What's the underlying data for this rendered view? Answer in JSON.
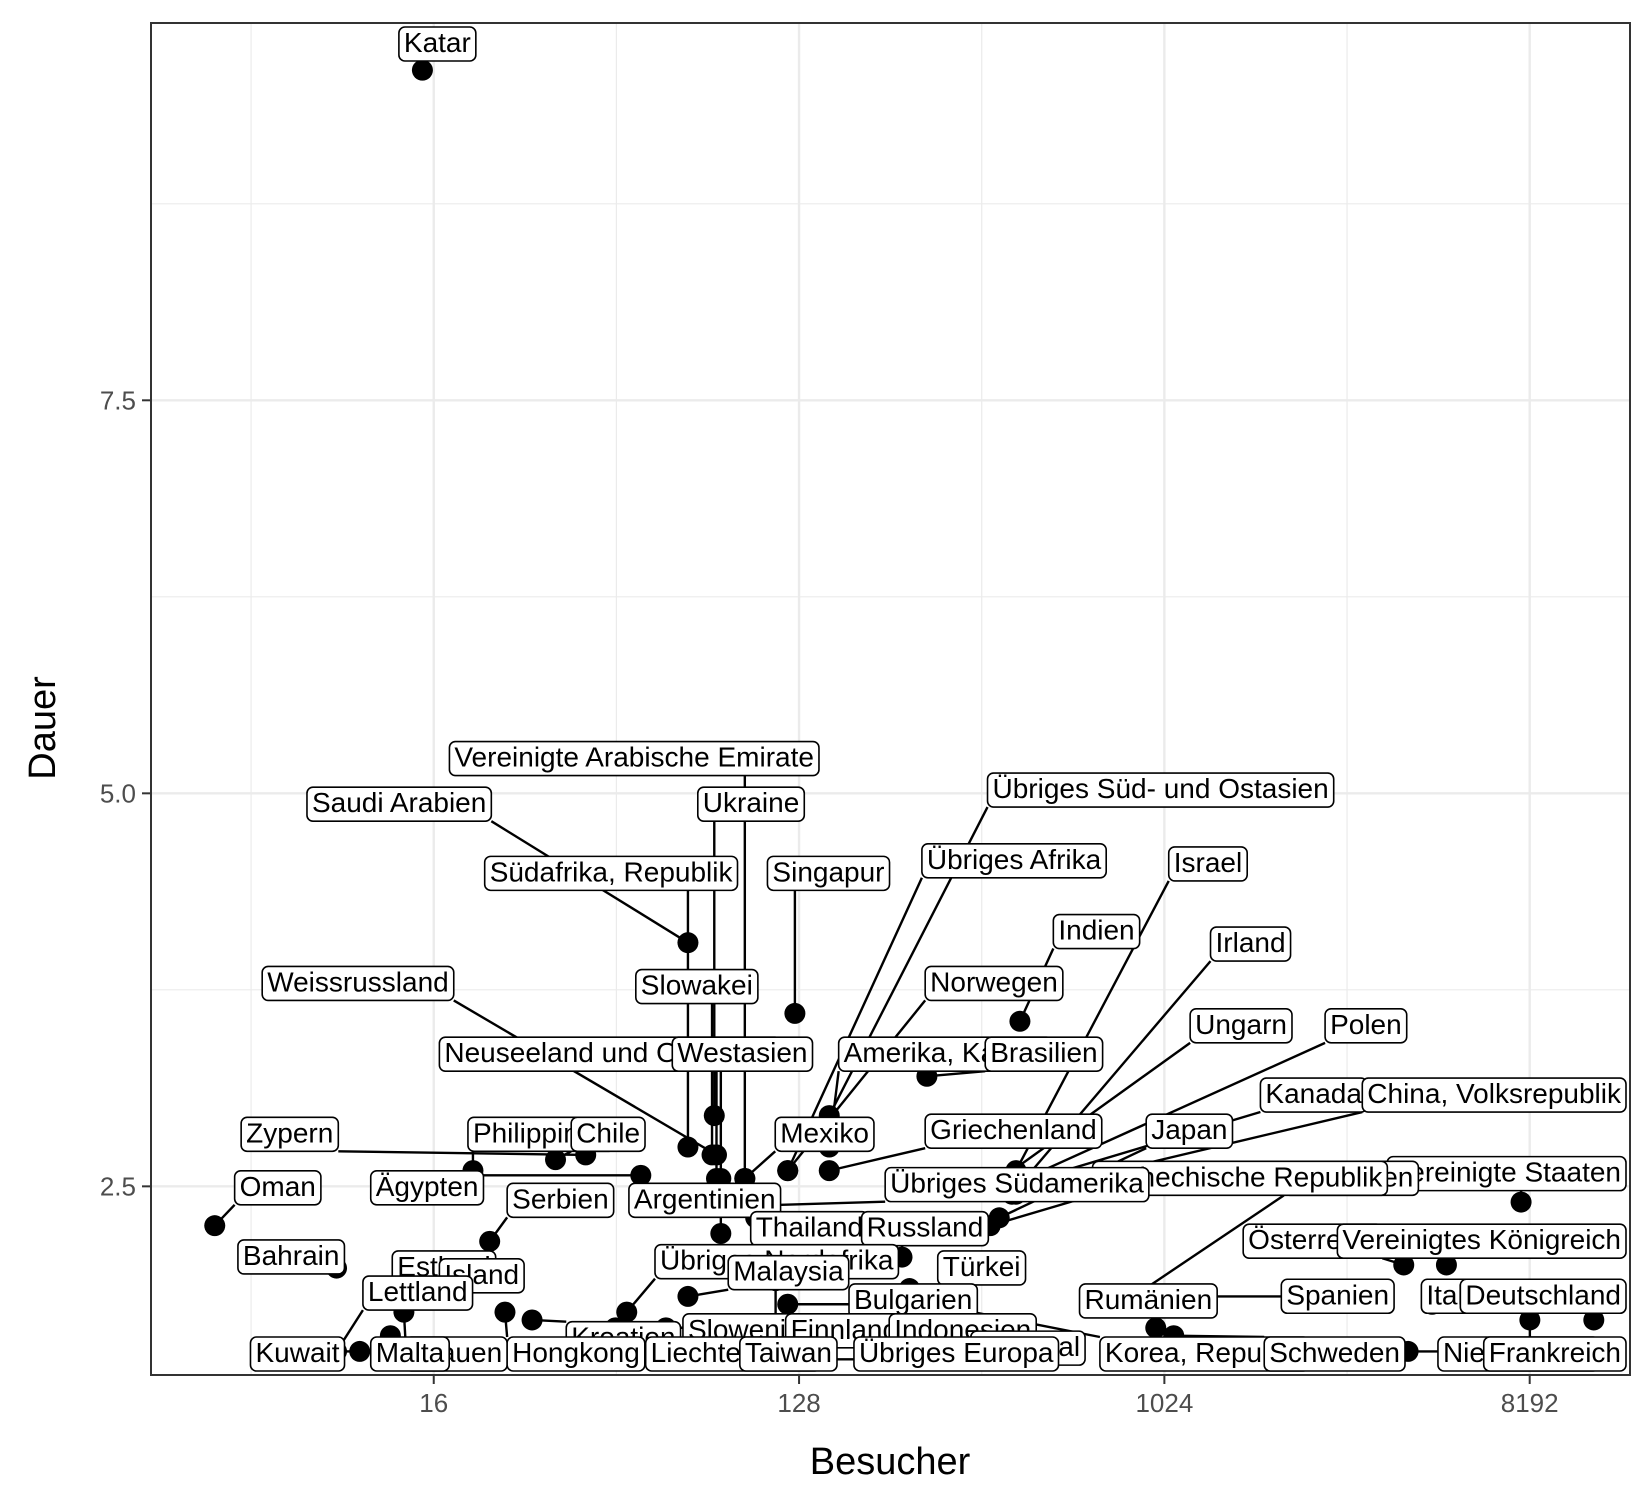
{
  "chart_data": {
    "type": "scatter",
    "xlabel": "Besucher",
    "ylabel": "Dauer",
    "x_scale": "log2",
    "x_ticks": [
      16,
      128,
      1024,
      8192
    ],
    "y_ticks": [
      2.5,
      5.0,
      7.5
    ],
    "xlim": [
      3.2,
      14500
    ],
    "ylim": [
      1.3,
      9.9
    ],
    "grid": true,
    "theme": "bw",
    "point_color": "#000000",
    "points": [
      {
        "label": "Katar",
        "x": 15,
        "y": 9.6,
        "lx": 13.5,
        "ly": 9.75
      },
      {
        "label": "Vereinigte Arabische Emirate",
        "x": 94,
        "y": 2.55,
        "lx": 18,
        "ly": 5.17
      },
      {
        "label": "Übriges Süd- und Ostasien",
        "x": 152,
        "y": 2.95,
        "lx": 385,
        "ly": 4.97
      },
      {
        "label": "Saudi Arabien",
        "x": 68,
        "y": 4.05,
        "lx": 8,
        "ly": 4.88
      },
      {
        "label": "Ukraine",
        "x": 79,
        "y": 2.95,
        "lx": 74,
        "ly": 4.88
      },
      {
        "label": "Übriges Afrika",
        "x": 120,
        "y": 2.6,
        "lx": 265,
        "ly": 4.52
      },
      {
        "label": "Israel",
        "x": 440,
        "y": 2.6,
        "lx": 1080,
        "ly": 4.5
      },
      {
        "label": "Südafrika, Republik",
        "x": 68,
        "y": 2.75,
        "lx": 22,
        "ly": 4.44
      },
      {
        "label": "Singapur",
        "x": 125,
        "y": 3.6,
        "lx": 110,
        "ly": 4.44
      },
      {
        "label": "Indien",
        "x": 450,
        "y": 3.55,
        "lx": 560,
        "ly": 4.07
      },
      {
        "label": "Irland",
        "x": 430,
        "y": 2.45,
        "lx": 1370,
        "ly": 3.99
      },
      {
        "label": "Weissrussland",
        "x": 80,
        "y": 2.7,
        "lx": 6.2,
        "ly": 3.74
      },
      {
        "label": "Slowakei",
        "x": 78,
        "y": 2.7,
        "lx": 52,
        "ly": 3.72
      },
      {
        "label": "Norwegen",
        "x": 120,
        "y": 2.6,
        "lx": 270,
        "ly": 3.74
      },
      {
        "label": "Ungarn",
        "x": 405,
        "y": 2.55,
        "lx": 1220,
        "ly": 3.47
      },
      {
        "label": "Polen",
        "x": 420,
        "y": 2.5,
        "lx": 2630,
        "ly": 3.47
      },
      {
        "label": "Neuseeland und Ozeanien",
        "x": 80,
        "y": 2.55,
        "lx": 17,
        "ly": 3.29
      },
      {
        "label": "Westasien",
        "x": 82,
        "y": 2.55,
        "lx": 64,
        "ly": 3.29
      },
      {
        "label": "Amerika, Karibik",
        "x": 152,
        "y": 2.75,
        "lx": 165,
        "ly": 3.29
      },
      {
        "label": "Brasilien",
        "x": 265,
        "y": 3.2,
        "lx": 380,
        "ly": 3.29
      },
      {
        "label": "Kanada",
        "x": 430,
        "y": 2.5,
        "lx": 1820,
        "ly": 3.03
      },
      {
        "label": "China, Volksrepublik",
        "x": 440,
        "y": 2.45,
        "lx": 4900,
        "ly": 3.03
      },
      {
        "label": "Zypern",
        "x": 38,
        "y": 2.7,
        "lx": 5.5,
        "ly": 2.78
      },
      {
        "label": "Philippinen",
        "x": 20,
        "y": 2.6,
        "lx": 20,
        "ly": 2.78
      },
      {
        "label": "Chile",
        "x": 32,
        "y": 2.67,
        "lx": 36,
        "ly": 2.78
      },
      {
        "label": "Mexiko",
        "x": 94,
        "y": 2.55,
        "lx": 115,
        "ly": 2.78
      },
      {
        "label": "Griechenland",
        "x": 152,
        "y": 2.6,
        "lx": 270,
        "ly": 2.8
      },
      {
        "label": "Japan",
        "x": 400,
        "y": 2.3,
        "lx": 950,
        "ly": 2.8
      },
      {
        "label": "Vereinigte Staaten",
        "x": 7800,
        "y": 2.4,
        "lx": 6100,
        "ly": 2.53
      },
      {
        "label": "Australien",
        "x": 860,
        "y": 1.8,
        "lx": 2080,
        "ly": 2.5
      },
      {
        "label": "Tschechische Republik",
        "x": 380,
        "y": 2.25,
        "lx": 700,
        "ly": 2.5
      },
      {
        "label": "Oman",
        "x": 4.6,
        "y": 2.25,
        "lx": 5.3,
        "ly": 2.44
      },
      {
        "label": "Ägypten",
        "x": 52,
        "y": 2.57,
        "lx": 11.5,
        "ly": 2.44
      },
      {
        "label": "Übriges Südamerika",
        "x": 108,
        "y": 2.38,
        "lx": 215,
        "ly": 2.46
      },
      {
        "label": "Serbien",
        "x": 22,
        "y": 2.15,
        "lx": 25,
        "ly": 2.36
      },
      {
        "label": "Argentinien",
        "x": 82,
        "y": 2.2,
        "lx": 50,
        "ly": 2.36
      },
      {
        "label": "Thailand",
        "x": 100,
        "y": 2.3,
        "lx": 100,
        "ly": 2.18
      },
      {
        "label": "Russland",
        "x": 230,
        "y": 2.05,
        "lx": 188,
        "ly": 2.18
      },
      {
        "label": "Österreich",
        "x": 4000,
        "y": 2.0,
        "lx": 1650,
        "ly": 2.1
      },
      {
        "label": "Vereinigtes Königreich",
        "x": 5100,
        "y": 2.0,
        "lx": 4900,
        "ly": 2.1
      },
      {
        "label": "Bahrain",
        "x": 9.2,
        "y": 1.98,
        "lx": 5.4,
        "ly": 2.0
      },
      {
        "label": "Estland",
        "x": 12,
        "y": 1.8,
        "lx": 13,
        "ly": 1.93
      },
      {
        "label": "Island",
        "x": 14,
        "y": 1.8,
        "lx": 17,
        "ly": 1.88
      },
      {
        "label": "Übriges Nordafrika",
        "x": 48,
        "y": 1.7,
        "lx": 58,
        "ly": 1.97
      },
      {
        "label": "Malaysia",
        "x": 68,
        "y": 1.8,
        "lx": 88,
        "ly": 1.9
      },
      {
        "label": "Türkei",
        "x": 240,
        "y": 1.85,
        "lx": 290,
        "ly": 1.93
      },
      {
        "label": "Lettland",
        "x": 9.2,
        "y": 1.45,
        "lx": 11,
        "ly": 1.77
      },
      {
        "label": "Bulgarien",
        "x": 120,
        "y": 1.75,
        "lx": 175,
        "ly": 1.72
      },
      {
        "label": "Rumänien",
        "x": 975,
        "y": 1.6,
        "lx": 650,
        "ly": 1.72
      },
      {
        "label": "Spanien",
        "x": 1080,
        "y": 1.8,
        "lx": 2050,
        "ly": 1.75
      },
      {
        "label": "Italien",
        "x": 4700,
        "y": 1.75,
        "lx": 4550,
        "ly": 1.75
      },
      {
        "label": "Deutschland",
        "x": 11800,
        "y": 1.65,
        "lx": 9000,
        "ly": 1.75
      },
      {
        "label": "Slowenien",
        "x": 45,
        "y": 1.6,
        "lx": 68,
        "ly": 1.53
      },
      {
        "label": "Finnland",
        "x": 60,
        "y": 1.6,
        "lx": 122,
        "ly": 1.53
      },
      {
        "label": "Indonesien",
        "x": 230,
        "y": 1.7,
        "lx": 220,
        "ly": 1.53
      },
      {
        "label": "Kroatien",
        "x": 28,
        "y": 1.65,
        "lx": 35,
        "ly": 1.48
      },
      {
        "label": "Portugal",
        "x": 275,
        "y": 1.65,
        "lx": 350,
        "ly": 1.42
      },
      {
        "label": "Litauen",
        "x": 13.5,
        "y": 1.7,
        "lx": 14,
        "ly": 1.37
      },
      {
        "label": "Kuwait",
        "x": 10.5,
        "y": 1.45,
        "lx": 5.8,
        "ly": 1.25
      },
      {
        "label": "Malta",
        "x": 12.5,
        "y": 1.55,
        "lx": 11.5,
        "ly": 1.25
      },
      {
        "label": "Hongkong",
        "x": 24,
        "y": 1.7,
        "lx": 25,
        "ly": 1.25
      },
      {
        "label": "Liechtenstein",
        "x": 42,
        "y": 1.55,
        "lx": 55,
        "ly": 1.25
      },
      {
        "label": "Taiwan",
        "x": 112,
        "y": 1.9,
        "lx": 94,
        "ly": 1.25
      },
      {
        "label": "Übriges Europa",
        "x": 140,
        "y": 1.4,
        "lx": 180,
        "ly": 1.25
      },
      {
        "label": "Korea, Republik",
        "x": 275,
        "y": 1.75,
        "lx": 730,
        "ly": 1.25
      },
      {
        "label": "Schweden",
        "x": 1080,
        "y": 1.55,
        "lx": 1860,
        "ly": 1.25
      },
      {
        "label": "Niederlande",
        "x": 4100,
        "y": 1.45,
        "lx": 5000,
        "ly": 1.25
      },
      {
        "label": "Frankreich",
        "x": 8200,
        "y": 1.65,
        "lx": 7700,
        "ly": 1.25
      }
    ]
  }
}
